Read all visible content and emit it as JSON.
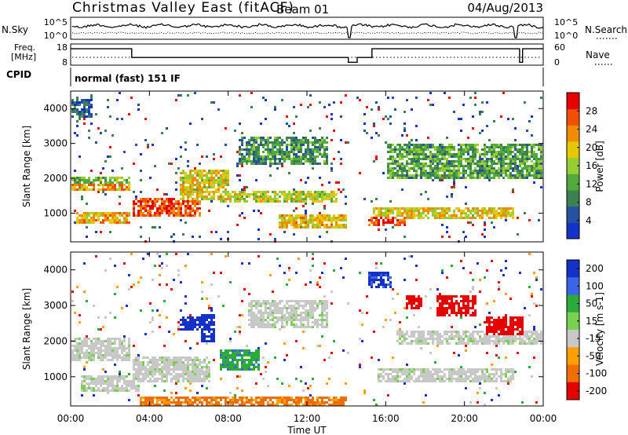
{
  "header": {
    "title": "Christmas Valley East (fitACF)",
    "beam": "Beam 01",
    "date": "04/Aug/2013"
  },
  "noise_panel": {
    "left_label": "N.Sky",
    "left_ticks": [
      "10^5",
      "10^0"
    ],
    "right_ticks": [
      "10^5",
      "10^0"
    ],
    "right_label": "N.Search"
  },
  "freq_panel": {
    "left_label_1": "Freq.",
    "left_label_2": "[MHz]",
    "left_ticks": [
      "18",
      "8"
    ],
    "right_ticks": [
      "60",
      "0"
    ],
    "right_label": "Nave",
    "freq_steps": [
      {
        "t": 0,
        "mhz": 16.3
      },
      {
        "t": 3.1,
        "mhz": 10.3
      },
      {
        "t": 14.1,
        "mhz": 7.0
      },
      {
        "t": 14.55,
        "mhz": 10.3
      },
      {
        "t": 15.3,
        "mhz": 16.3
      },
      {
        "t": 22.8,
        "mhz": 7.0
      },
      {
        "t": 22.95,
        "mhz": 16.3
      },
      {
        "t": 24,
        "mhz": 16.3
      }
    ]
  },
  "cpid": {
    "label": "CPID",
    "value": "normal (fast) 151 IF"
  },
  "chart_data": [
    {
      "type": "heatmap",
      "ylabel": "Slant Range [km]",
      "xlabel": "Time UT",
      "x_ticks": [
        "00:00",
        "04:00",
        "08:00",
        "12:00",
        "16:00",
        "20:00",
        "00:00"
      ],
      "y_ticks": [
        "1000",
        "2000",
        "3000",
        "4000"
      ],
      "xlim_hours": [
        0,
        24
      ],
      "ylim_km": [
        180,
        4500
      ],
      "colorbar": {
        "label": "Power [dB]",
        "ticks": [
          "4",
          "8",
          "12",
          "16",
          "20",
          "24",
          "28"
        ],
        "range": [
          0,
          30
        ],
        "colors": [
          "#1432c8",
          "#2850a0",
          "#3c8250",
          "#50aa3c",
          "#96cd32",
          "#e6c800",
          "#f08c00",
          "#f05000",
          "#e60000"
        ]
      },
      "features": [
        {
          "t0": 0,
          "t1": 3.0,
          "r0": 1700,
          "r1": 2000,
          "level": 0.72
        },
        {
          "t0": 0,
          "t1": 3.0,
          "r0": 1850,
          "r1": 2050,
          "level": 0.4
        },
        {
          "t0": 0.2,
          "t1": 3.0,
          "r0": 700,
          "r1": 1100,
          "level": 0.7
        },
        {
          "t0": 3.1,
          "t1": 6.5,
          "r0": 950,
          "r1": 1450,
          "level": 0.9
        },
        {
          "t0": 5.5,
          "t1": 8.0,
          "r0": 1400,
          "r1": 2300,
          "level": 0.6
        },
        {
          "t0": 7.5,
          "t1": 13.5,
          "r0": 1350,
          "r1": 1650,
          "level": 0.55
        },
        {
          "t0": 10.5,
          "t1": 14.0,
          "r0": 600,
          "r1": 1000,
          "level": 0.65
        },
        {
          "t0": 15.3,
          "t1": 22.5,
          "r0": 900,
          "r1": 1200,
          "level": 0.62
        },
        {
          "t0": 15.0,
          "t1": 17.0,
          "r0": 650,
          "r1": 950,
          "level": 0.9
        },
        {
          "t0": 8.5,
          "t1": 13.0,
          "r0": 2400,
          "r1": 3200,
          "level": 0.3
        },
        {
          "t0": 16.0,
          "t1": 24.0,
          "r0": 2000,
          "r1": 3000,
          "level": 0.35
        },
        {
          "t0": 0,
          "t1": 1.0,
          "r0": 3800,
          "r1": 4300,
          "level": 0.15
        }
      ]
    },
    {
      "type": "heatmap",
      "ylabel": "Slant Range [km]",
      "xlabel": "Time UT",
      "x_ticks": [
        "00:00",
        "04:00",
        "08:00",
        "12:00",
        "16:00",
        "20:00",
        "00:00"
      ],
      "y_ticks": [
        "1000",
        "2000",
        "3000",
        "4000"
      ],
      "xlim_hours": [
        0,
        24
      ],
      "ylim_km": [
        180,
        4500
      ],
      "colorbar": {
        "label": "Velocity [m s-1]",
        "ticks": [
          "200",
          "100",
          "50",
          "15",
          "-15",
          "-50",
          "-100",
          "-200"
        ],
        "colors": [
          "#1432c8",
          "#3c64e6",
          "#2daa3c",
          "#78d250",
          "#c8c8c8",
          "#ffa000",
          "#f06e00",
          "#e60000"
        ]
      },
      "features": [
        {
          "t0": 0,
          "t1": 3.0,
          "r0": 1500,
          "r1": 2100,
          "vel": 0
        },
        {
          "t0": 0.5,
          "t1": 3.5,
          "r0": 600,
          "r1": 1100,
          "vel": 0
        },
        {
          "t0": 3.1,
          "t1": 7.0,
          "r0": 900,
          "r1": 1600,
          "vel": 0
        },
        {
          "t0": 5.5,
          "t1": 6.5,
          "r0": 2300,
          "r1": 2700,
          "vel": 180
        },
        {
          "t0": 6.5,
          "t1": 7.3,
          "r0": 2000,
          "r1": 2800,
          "vel": 200
        },
        {
          "t0": 7.5,
          "t1": 9.5,
          "r0": 1200,
          "r1": 1800,
          "vel": 60
        },
        {
          "t0": 9.0,
          "t1": 13.0,
          "r0": 2400,
          "r1": 3200,
          "vel": 0
        },
        {
          "t0": 3.5,
          "t1": 14.0,
          "r0": 180,
          "r1": 500,
          "vel": -60
        },
        {
          "t0": 15.5,
          "t1": 22.5,
          "r0": 900,
          "r1": 1300,
          "vel": 0
        },
        {
          "t0": 16.5,
          "t1": 24.0,
          "r0": 1900,
          "r1": 2300,
          "vel": 0
        },
        {
          "t0": 17.0,
          "t1": 17.8,
          "r0": 2900,
          "r1": 3300,
          "vel": -200
        },
        {
          "t0": 18.5,
          "t1": 20.5,
          "r0": 2700,
          "r1": 3300,
          "vel": -180
        },
        {
          "t0": 21.0,
          "t1": 23.0,
          "r0": 2200,
          "r1": 2700,
          "vel": -150
        },
        {
          "t0": 15.0,
          "t1": 16.2,
          "r0": 3500,
          "r1": 4000,
          "vel": 160
        }
      ]
    }
  ]
}
